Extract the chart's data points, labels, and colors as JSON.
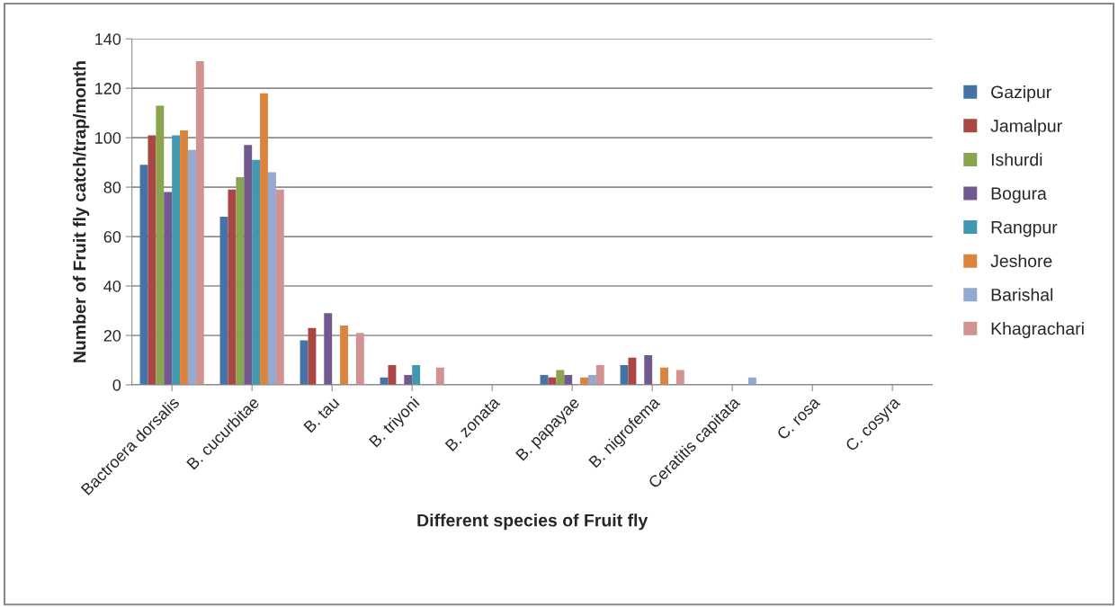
{
  "chart_data": {
    "type": "bar",
    "xlabel": "Different species of Fruit fly",
    "ylabel": "Number of Fruit fly catch/trap/month",
    "categories": [
      "Bactroera dorsalis",
      "B. cucurbitae",
      "B. tau",
      "B. triyoni",
      "B. zonata",
      "B. papayae",
      "B. nigrofema",
      "Ceratitis capitata",
      "C. rosa",
      "C. cosyra"
    ],
    "series": [
      {
        "name": "Gazipur",
        "color": "#4572a7",
        "values": [
          89,
          68,
          18,
          3,
          0,
          4,
          8,
          0,
          0,
          0
        ]
      },
      {
        "name": "Jamalpur",
        "color": "#aa4643",
        "values": [
          101,
          79,
          23,
          8,
          0,
          3,
          11,
          0,
          0,
          0
        ]
      },
      {
        "name": "Ishurdi",
        "color": "#89a54e",
        "values": [
          113,
          84,
          0,
          0,
          0,
          6,
          0,
          0,
          0,
          0
        ]
      },
      {
        "name": "Bogura",
        "color": "#71588f",
        "values": [
          78,
          97,
          29,
          4,
          0,
          4,
          12,
          0,
          0,
          0
        ]
      },
      {
        "name": "Rangpur",
        "color": "#4198af",
        "values": [
          101,
          91,
          0,
          8,
          0,
          0,
          0,
          0,
          0,
          0
        ]
      },
      {
        "name": "Jeshore",
        "color": "#db843d",
        "values": [
          103,
          118,
          24,
          0,
          0,
          3,
          7,
          0,
          0,
          0
        ]
      },
      {
        "name": "Barishal",
        "color": "#93a9cf",
        "values": [
          95,
          86,
          0,
          0,
          0,
          4,
          0,
          3,
          0,
          0
        ]
      },
      {
        "name": "Khagrachari",
        "color": "#d19392",
        "values": [
          131,
          79,
          21,
          7,
          0,
          8,
          6,
          0,
          0,
          0
        ]
      }
    ],
    "ylim": [
      0,
      140
    ],
    "yticks": [
      0,
      20,
      40,
      60,
      80,
      100,
      120,
      140
    ],
    "grid": "y",
    "legend": "right"
  }
}
